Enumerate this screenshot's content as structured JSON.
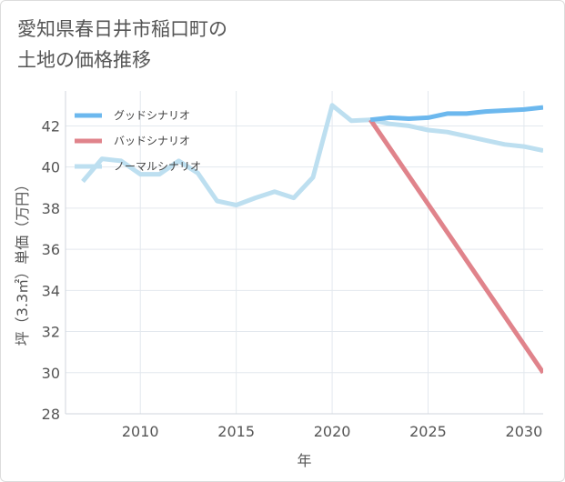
{
  "chart_data": {
    "type": "line",
    "title": [
      "愛知県春日井市稲口町の",
      "土地の価格推移"
    ],
    "xlabel": "年",
    "ylabel": "坪（3.3㎡）単価（万円）",
    "xlim": [
      2006.1,
      2031
    ],
    "ylim": [
      28,
      43.7
    ],
    "x_ticks": [
      2010,
      2015,
      2020,
      2025,
      2030
    ],
    "y_ticks": [
      28,
      30,
      32,
      34,
      36,
      38,
      40,
      42
    ],
    "legend_position": "top-left",
    "series": [
      {
        "name": "グッドシナリオ",
        "color": "#6cb8ee",
        "x": [
          2022,
          2023,
          2024,
          2025,
          2026,
          2027,
          2028,
          2029,
          2030,
          2031
        ],
        "y": [
          42.3,
          42.4,
          42.35,
          42.4,
          42.6,
          42.6,
          42.7,
          42.75,
          42.8,
          42.9
        ]
      },
      {
        "name": "バッドシナリオ",
        "color": "#e0838b",
        "x": [
          2022,
          2031
        ],
        "y": [
          42.3,
          30.0
        ]
      },
      {
        "name": "ノーマルシナリオ",
        "color": "#bddff0",
        "x": [
          2007,
          2008,
          2009,
          2010,
          2011,
          2012,
          2013,
          2014,
          2015,
          2016,
          2017,
          2018,
          2019,
          2020,
          2021,
          2022,
          2023,
          2024,
          2025,
          2026,
          2027,
          2028,
          2029,
          2030,
          2031
        ],
        "y": [
          39.3,
          40.4,
          40.3,
          39.65,
          39.65,
          40.3,
          39.7,
          38.35,
          38.15,
          38.5,
          38.8,
          38.5,
          39.5,
          43.0,
          42.25,
          42.3,
          42.1,
          42.0,
          41.8,
          41.7,
          41.5,
          41.3,
          41.1,
          41.0,
          40.8
        ]
      }
    ]
  }
}
